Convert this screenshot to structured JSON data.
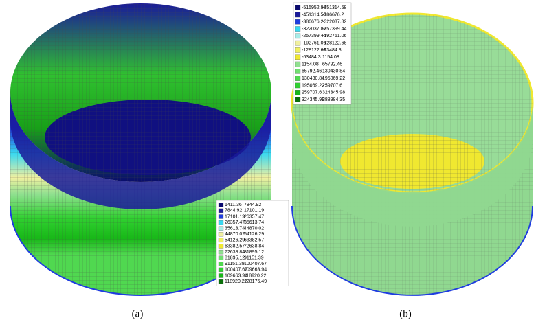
{
  "panels": [
    {
      "caption": "(a)",
      "legend": [
        {
          "color": "#0a0a6e",
          "from": "1411.36",
          "to": "7844.92"
        },
        {
          "color": "#1a1a9a",
          "from": "7844.92",
          "to": "17101.19"
        },
        {
          "color": "#1e3ce0",
          "from": "17101.19",
          "to": "26357.47"
        },
        {
          "color": "#38d8f0",
          "from": "26357.47",
          "to": "35613.74"
        },
        {
          "color": "#a8ece8",
          "from": "35613.74",
          "to": "44870.02"
        },
        {
          "color": "#f0f0a0",
          "from": "44870.02",
          "to": "54126.29"
        },
        {
          "color": "#f0f060",
          "from": "54126.29",
          "to": "63382.57"
        },
        {
          "color": "#f0e830",
          "from": "63382.57",
          "to": "72638.84"
        },
        {
          "color": "#90e090",
          "from": "72638.84",
          "to": "81895.12"
        },
        {
          "color": "#70e070",
          "from": "81895.12",
          "to": "91151.39"
        },
        {
          "color": "#50d850",
          "from": "91151.39",
          "to": "100407.67"
        },
        {
          "color": "#30d030",
          "from": "100407.67",
          "to": "109663.94"
        },
        {
          "color": "#18b818",
          "from": "109663.94",
          "to": "118920.22"
        },
        {
          "color": "#0a700a",
          "from": "118920.22",
          "to": "128176.49"
        }
      ]
    },
    {
      "caption": "(b)",
      "legend": [
        {
          "color": "#0a0a6e",
          "from": "-515952.96",
          "to": "-451314.58"
        },
        {
          "color": "#1a1a9a",
          "from": "-451314.58",
          "to": "-386676.2"
        },
        {
          "color": "#1e3ce0",
          "from": "-386676.2",
          "to": "-322037.82"
        },
        {
          "color": "#38d8f0",
          "from": "-322037.82",
          "to": "-257399.44"
        },
        {
          "color": "#a8ece8",
          "from": "-257399.44",
          "to": "-192761.06"
        },
        {
          "color": "#f0f0a0",
          "from": "-192761.06",
          "to": "-128122.68"
        },
        {
          "color": "#f0f060",
          "from": "-128122.68",
          "to": "-63484.3"
        },
        {
          "color": "#f0e830",
          "from": "-63484.3",
          "to": "1154.08"
        },
        {
          "color": "#90e090",
          "from": "1154.08",
          "to": "65792.46"
        },
        {
          "color": "#70e070",
          "from": "65792.46",
          "to": "130430.84"
        },
        {
          "color": "#50d850",
          "from": "130430.84",
          "to": "195069.22"
        },
        {
          "color": "#30d030",
          "from": "195069.22",
          "to": "259707.6"
        },
        {
          "color": "#18b818",
          "from": "259707.6",
          "to": "324345.98"
        },
        {
          "color": "#0a700a",
          "from": "324345.98",
          "to": "388984.35"
        }
      ]
    }
  ]
}
